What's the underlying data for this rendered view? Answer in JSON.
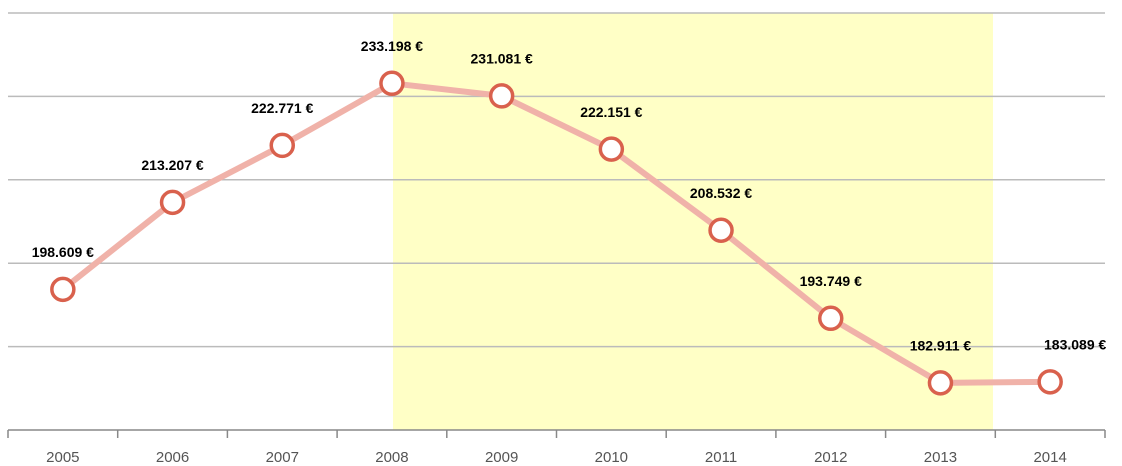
{
  "chart_data": {
    "type": "line",
    "categories": [
      "2005",
      "2006",
      "2007",
      "2008",
      "2009",
      "2010",
      "2011",
      "2012",
      "2013",
      "2014"
    ],
    "series": [
      {
        "color": "#f0b2a9",
        "marker_color": "#d9614d",
        "values": [
          198609,
          213207,
          222771,
          233198,
          231081,
          222151,
          208532,
          193749,
          182911,
          183089
        ],
        "value_labels": [
          "198.609 €",
          "213.207 €",
          "222.771 €",
          "233.198 €",
          "231.081 €",
          "222.151 €",
          "208.532 €",
          "193.749 €",
          "182.911 €",
          "183.089 €"
        ]
      }
    ],
    "ylim": [
      175000,
      245000
    ],
    "yticks": [
      175000,
      189000,
      203000,
      217000,
      231000,
      245000
    ],
    "grid": true
  }
}
